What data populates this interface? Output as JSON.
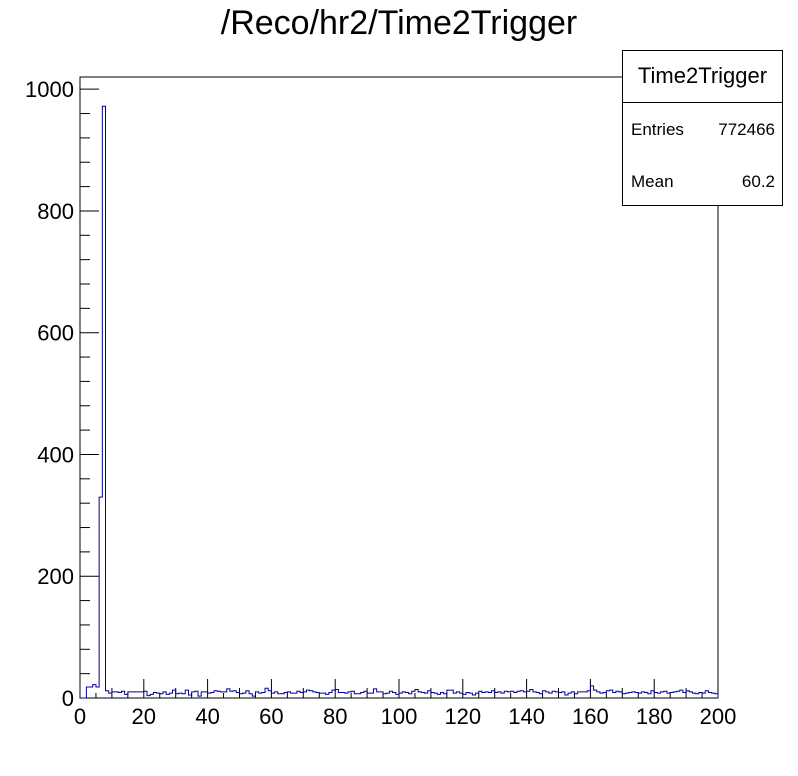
{
  "chart_data": {
    "type": "bar",
    "style": "step-histogram",
    "title": "/Reco/hr2/Time2Trigger",
    "xlabel": "",
    "ylabel": "",
    "xlim": [
      0,
      200
    ],
    "ylim": [
      0,
      1020
    ],
    "x_ticks": [
      0,
      20,
      40,
      60,
      80,
      100,
      120,
      140,
      160,
      180,
      200
    ],
    "y_ticks": [
      0,
      200,
      400,
      600,
      800,
      1000
    ],
    "grid": false,
    "line_color": "#000099",
    "bin_width": 1,
    "values": [
      0,
      0,
      18,
      18,
      22,
      18,
      330,
      972,
      12,
      8,
      10,
      10,
      9,
      11,
      6,
      10,
      10,
      10,
      10,
      10,
      11,
      4,
      6,
      9,
      8,
      7,
      10,
      6,
      8,
      13,
      7,
      8,
      7,
      13,
      5,
      10,
      11,
      3,
      10,
      10,
      8,
      9,
      12,
      11,
      10,
      10,
      15,
      11,
      12,
      9,
      7,
      8,
      12,
      7,
      3,
      10,
      8,
      9,
      16,
      12,
      8,
      10,
      7,
      7,
      9,
      10,
      8,
      8,
      11,
      9,
      10,
      13,
      12,
      10,
      9,
      8,
      8,
      6,
      9,
      13,
      14,
      9,
      9,
      8,
      10,
      11,
      7,
      7,
      9,
      11,
      8,
      8,
      15,
      10,
      10,
      7,
      8,
      11,
      9,
      6,
      8,
      10,
      9,
      7,
      11,
      14,
      10,
      9,
      8,
      12,
      9,
      8,
      6,
      9,
      7,
      13,
      13,
      8,
      10,
      8,
      6,
      9,
      8,
      5,
      8,
      11,
      9,
      10,
      9,
      12,
      9,
      10,
      8,
      11,
      10,
      11,
      9,
      11,
      12,
      10,
      11,
      14,
      10,
      9,
      7,
      12,
      10,
      8,
      11,
      10,
      9,
      10,
      5,
      8,
      10,
      7,
      10,
      10,
      10,
      12,
      20,
      13,
      10,
      8,
      9,
      12,
      13,
      9,
      11,
      10,
      7,
      8,
      9,
      10,
      9,
      8,
      10,
      9,
      7,
      12,
      9,
      8,
      10,
      11,
      8,
      9,
      10,
      11,
      13,
      9,
      12,
      10,
      8,
      7,
      9,
      8,
      12,
      9,
      8,
      7
    ],
    "stats_box": {
      "name": "Time2Trigger",
      "entries_label": "Entries",
      "entries_value": "772466",
      "mean_label": "Mean",
      "mean_value": "60.2"
    }
  }
}
